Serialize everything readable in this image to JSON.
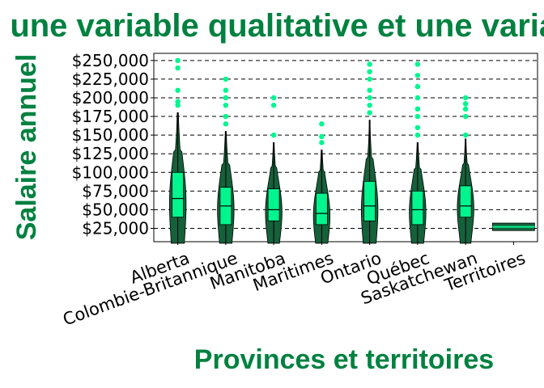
{
  "chart_data": {
    "type": "violin+boxplot",
    "title": "Relation entre une variable qualitative et une variable quantitative",
    "xlabel": "Provinces et territoires",
    "ylabel": "Salaire annuel",
    "ylim": [
      0,
      260000
    ],
    "yticks": [
      25000,
      50000,
      75000,
      100000,
      125000,
      150000,
      175000,
      200000,
      225000,
      250000
    ],
    "ytick_labels": [
      "$25,000",
      "$50,000",
      "$75,000",
      "$100,000",
      "$125,000",
      "$150,000",
      "$175,000",
      "$200,000",
      "$225,000",
      "$250,000"
    ],
    "grid": "horizontal dashed",
    "colors": {
      "title": "#008140",
      "violin": "#14613a",
      "box": "#00f58e",
      "outlier": "#00f58e",
      "grid": "#000000"
    },
    "categories": [
      "Alberta",
      "Colombie-Britannique",
      "Manitoba",
      "Maritimes",
      "Ontario",
      "Québec",
      "Saskatchewan",
      "Territoires"
    ],
    "groups": [
      {
        "name": "Alberta",
        "q1": 40000,
        "median": 65000,
        "q3": 100000,
        "whisker_low": 5000,
        "whisker_high": 180000,
        "violin_max": 180000,
        "outliers": [
          190000,
          195000,
          210000,
          240000,
          250000
        ]
      },
      {
        "name": "Colombie-Britannique",
        "q1": 30000,
        "median": 55000,
        "q3": 80000,
        "whisker_low": 5000,
        "whisker_high": 155000,
        "violin_max": 155000,
        "outliers": [
          165000,
          175000,
          190000,
          200000,
          210000,
          225000
        ]
      },
      {
        "name": "Manitoba",
        "q1": 35000,
        "median": 50000,
        "q3": 78000,
        "whisker_low": 5000,
        "whisker_high": 140000,
        "violin_max": 140000,
        "outliers": [
          150000,
          190000,
          200000
        ]
      },
      {
        "name": "Maritimes",
        "q1": 30000,
        "median": 45000,
        "q3": 72000,
        "whisker_low": 5000,
        "whisker_high": 130000,
        "violin_max": 130000,
        "outliers": [
          140000,
          148000,
          165000
        ]
      },
      {
        "name": "Ontario",
        "q1": 35000,
        "median": 55000,
        "q3": 88000,
        "whisker_low": 5000,
        "whisker_high": 170000,
        "violin_max": 170000,
        "outliers": [
          180000,
          190000,
          200000,
          210000,
          225000,
          235000,
          245000
        ]
      },
      {
        "name": "Québec",
        "q1": 30000,
        "median": 50000,
        "q3": 75000,
        "whisker_low": 5000,
        "whisker_high": 140000,
        "violin_max": 140000,
        "outliers": [
          150000,
          160000,
          175000,
          185000,
          200000,
          215000,
          230000,
          245000
        ]
      },
      {
        "name": "Saskatchewan",
        "q1": 40000,
        "median": 55000,
        "q3": 82000,
        "whisker_low": 5000,
        "whisker_high": 145000,
        "violin_max": 145000,
        "outliers": [
          150000,
          175000,
          185000,
          192000,
          200000
        ]
      },
      {
        "name": "Territoires",
        "q1": 24000,
        "median": 27000,
        "q3": 31000,
        "whisker_low": 22000,
        "whisker_high": 32000,
        "violin_max": 32000,
        "outliers": []
      }
    ]
  }
}
